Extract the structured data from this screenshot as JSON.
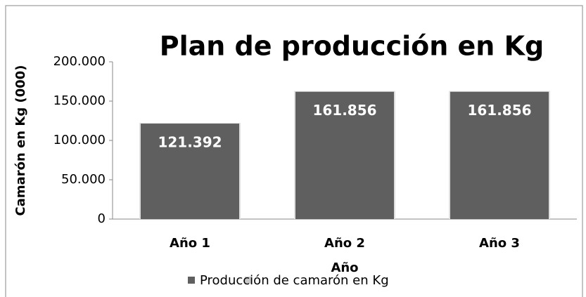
{
  "chart_data": {
    "type": "bar",
    "title": "Plan de producción en Kg",
    "y_label": "Camarón en Kg (000)",
    "x_label": "Año",
    "categories": [
      "Año 1",
      "Año 2",
      "Año 3"
    ],
    "series": [
      {
        "name": "Producción de camarón en Kg",
        "color": "#5f5f5f",
        "values": [
          121392,
          161856,
          161856
        ],
        "value_labels": [
          "121.392",
          "161.856",
          "161.856"
        ]
      }
    ],
    "ylim": [
      0,
      200000
    ],
    "yticks": [
      0,
      {
        "value": 50000,
        "label": "50.000"
      },
      {
        "value": 100000,
        "label": "100.000"
      },
      {
        "value": 150000,
        "label": "150.000"
      },
      {
        "value": 200000,
        "label": "200.000"
      }
    ]
  }
}
